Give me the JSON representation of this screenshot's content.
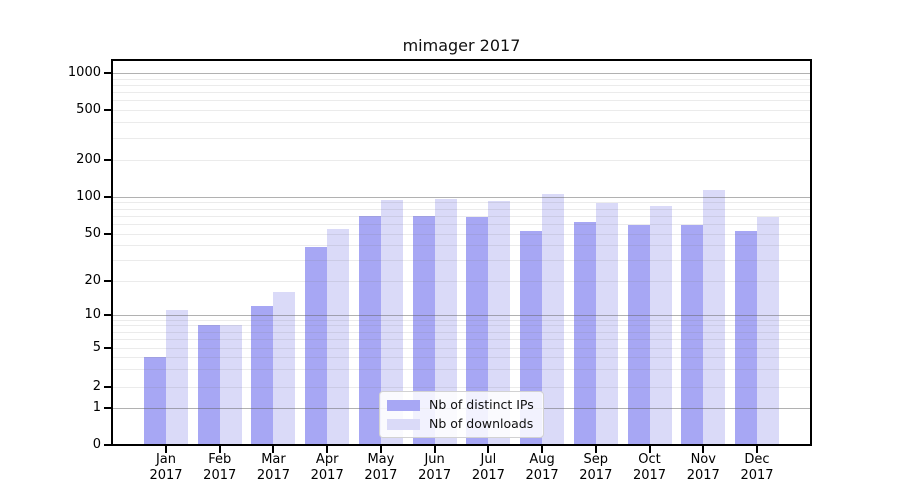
{
  "chart_data": {
    "type": "bar",
    "title": "mimager 2017",
    "categories": [
      "Jan",
      "Feb",
      "Mar",
      "Apr",
      "May",
      "Jun",
      "Jul",
      "Aug",
      "Sep",
      "Oct",
      "Nov",
      "Dec"
    ],
    "category_year": "2017",
    "series": [
      {
        "name": "Nb of distinct IPs",
        "color": "#a7a7f4",
        "values": [
          4,
          8,
          12,
          39,
          70,
          70,
          68,
          53,
          62,
          59,
          59,
          53
        ]
      },
      {
        "name": "Nb of downloads",
        "color": "#dadaf8",
        "values": [
          11,
          8,
          16,
          55,
          93,
          95,
          92,
          105,
          89,
          84,
          113,
          68
        ]
      }
    ],
    "xlabel": "",
    "ylabel": "",
    "y_axis": {
      "scale": "symlog",
      "tick_values": [
        0,
        1,
        2,
        5,
        10,
        20,
        50,
        100,
        200,
        500,
        1000
      ],
      "tick_labels": [
        "0",
        "1",
        "2",
        "5",
        "10",
        "20",
        "50",
        "100",
        "200",
        "500",
        "1000"
      ],
      "ylim": [
        0,
        1200
      ]
    },
    "grid": "horizontal major (1,10,100,1000) + minor log lines, drawn over bars",
    "legend": {
      "position": "lower center inside plot",
      "entries": [
        "Nb of distinct IPs",
        "Nb of downloads"
      ]
    }
  },
  "colors": {
    "bar_dark": "#a7a7f4",
    "bar_light": "#dadaf8",
    "major_grid": "rgba(100,100,100,0.50)",
    "minor_grid": "rgba(120,120,120,0.15)",
    "spine": "#000000",
    "background": "#ffffff"
  }
}
